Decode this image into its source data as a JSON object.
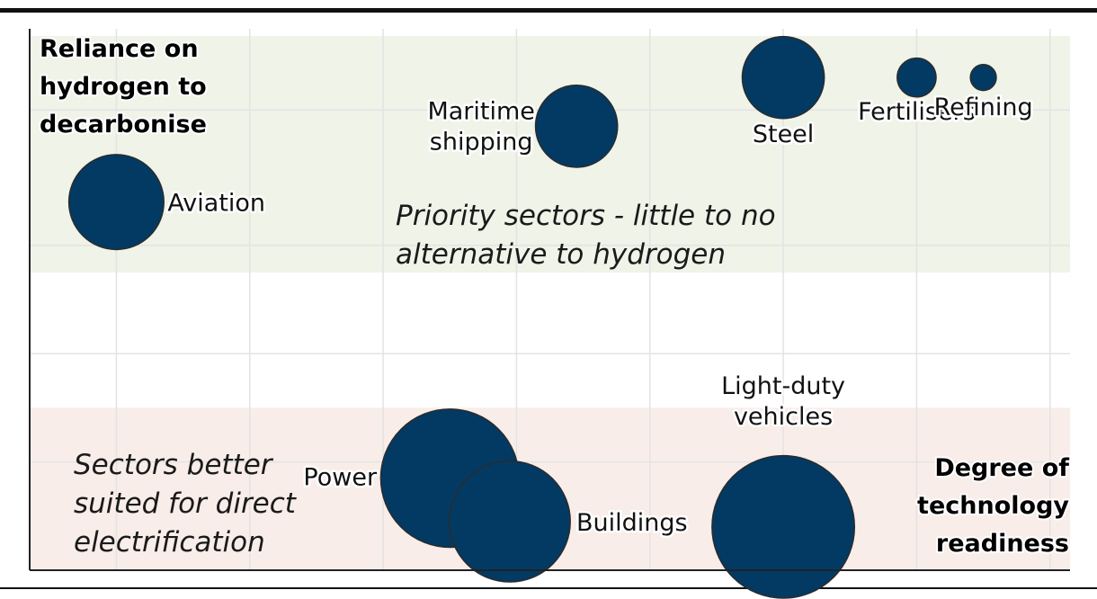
{
  "chart_data": {
    "type": "scatter",
    "title": "",
    "xlabel": "Degree of technology readiness",
    "ylabel": "Reliance on hydrogen to decarbonise",
    "xlim": [
      0,
      7.8
    ],
    "ylim": [
      0,
      10
    ],
    "grid": true,
    "points": [
      {
        "name": "Aviation",
        "x": 0.65,
        "y": 6.8,
        "size": 2.2
      },
      {
        "name": "Maritime shipping",
        "x": 4.1,
        "y": 8.2,
        "size": 1.9
      },
      {
        "name": "Steel",
        "x": 5.65,
        "y": 9.1,
        "size": 1.9
      },
      {
        "name": "Fertilisers",
        "x": 6.65,
        "y": 9.1,
        "size": 0.9
      },
      {
        "name": "Refining",
        "x": 7.15,
        "y": 9.1,
        "size": 0.6
      },
      {
        "name": "Power",
        "x": 3.15,
        "y": 1.7,
        "size": 3.2
      },
      {
        "name": "Buildings",
        "x": 3.6,
        "y": 0.9,
        "size": 2.8
      },
      {
        "name": "Light-duty vehicles",
        "x": 5.65,
        "y": 0.8,
        "size": 3.3
      }
    ],
    "regions": [
      {
        "name": "priority",
        "y_range": [
          5.5,
          10
        ],
        "color": "#eff3e8",
        "note": [
          "Priority sectors - little to no",
          "alternative to hydrogen"
        ]
      },
      {
        "name": "electrification",
        "y_range": [
          0,
          3
        ],
        "color": "#f8ede8",
        "note": [
          "Sectors better",
          "suited for direct",
          "electrification"
        ]
      }
    ]
  },
  "colors": {
    "bubble": "#023a64",
    "bubble_stroke": "#2b2b2b",
    "grid": "#e3e3e3",
    "axis": "#222222"
  }
}
